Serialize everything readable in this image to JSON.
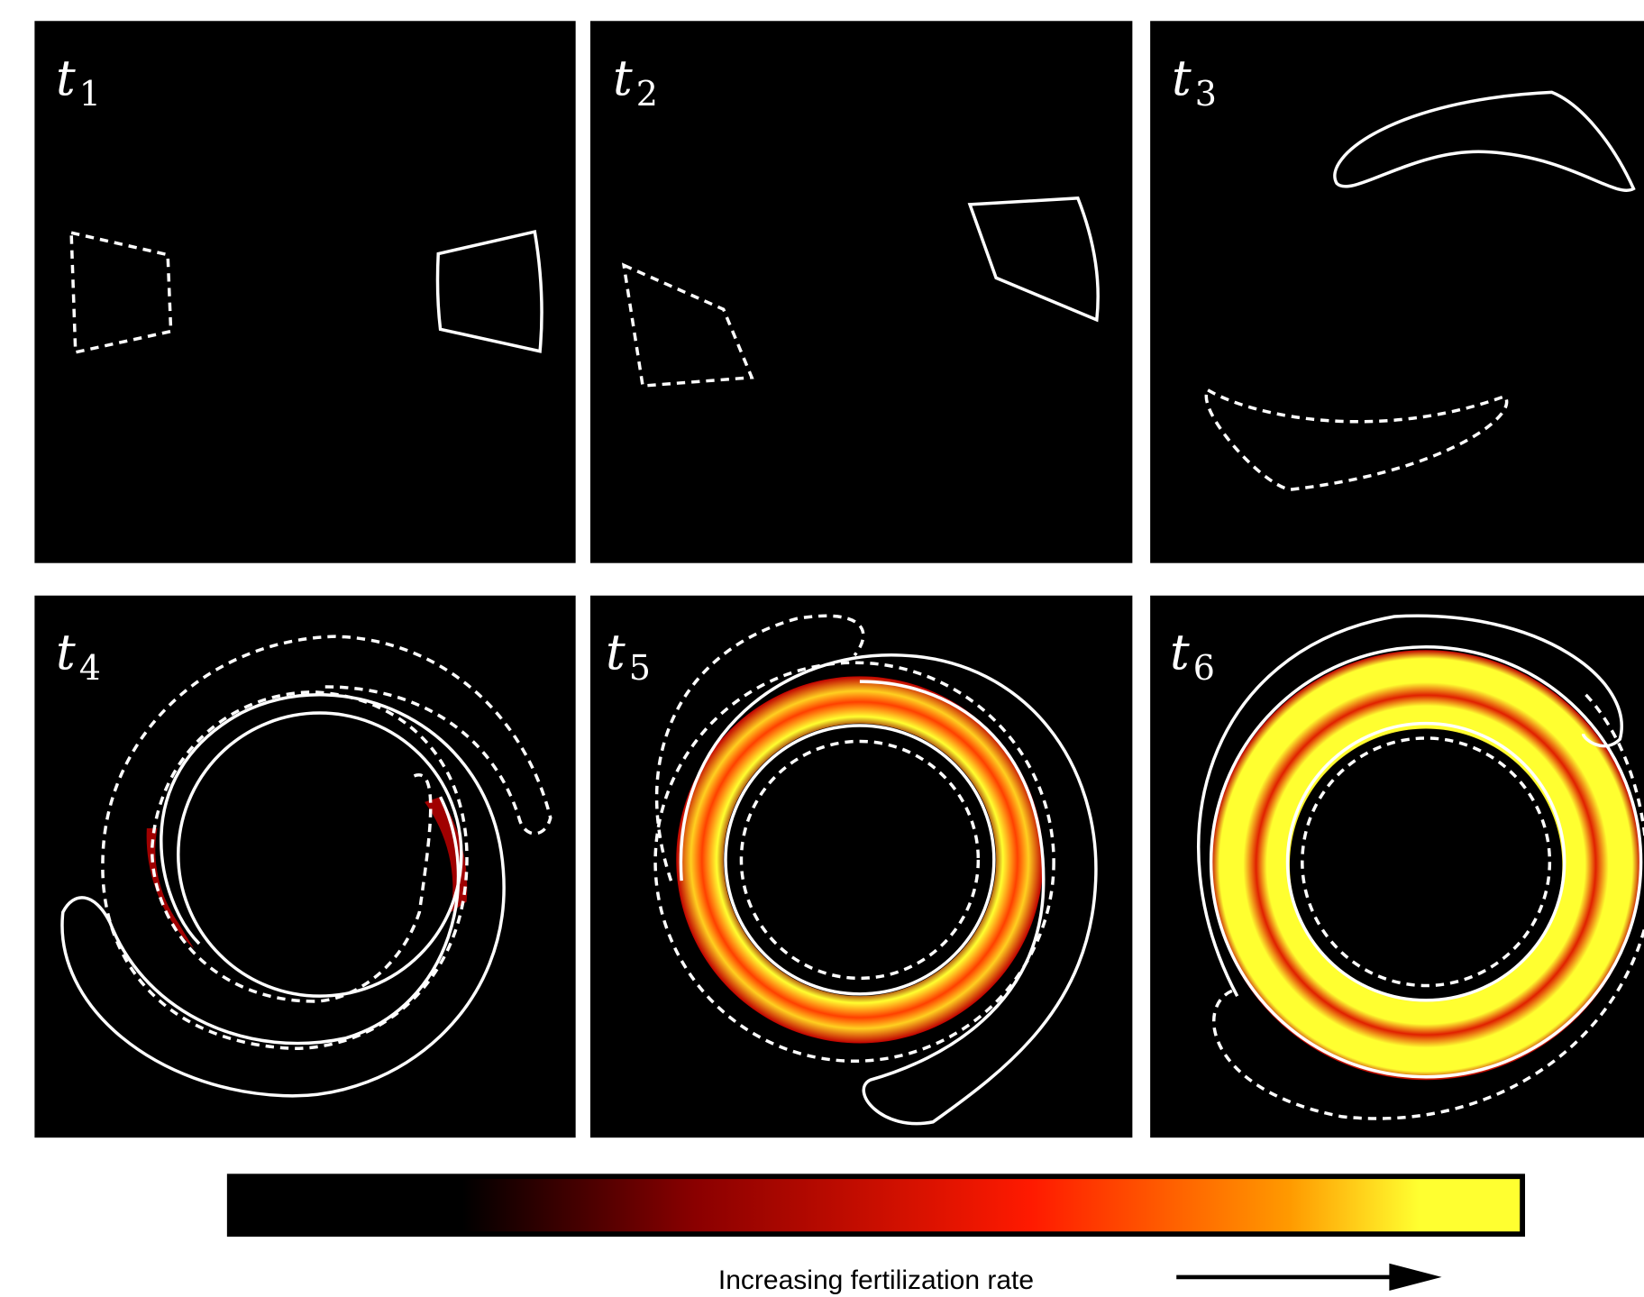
{
  "panels": [
    {
      "symbol": "t",
      "index": "1"
    },
    {
      "symbol": "t",
      "index": "2"
    },
    {
      "symbol": "t",
      "index": "3"
    },
    {
      "symbol": "t",
      "index": "4"
    },
    {
      "symbol": "t",
      "index": "5"
    },
    {
      "symbol": "t",
      "index": "6"
    }
  ],
  "colorbar": {
    "caption": "Increasing fertilization rate"
  }
}
